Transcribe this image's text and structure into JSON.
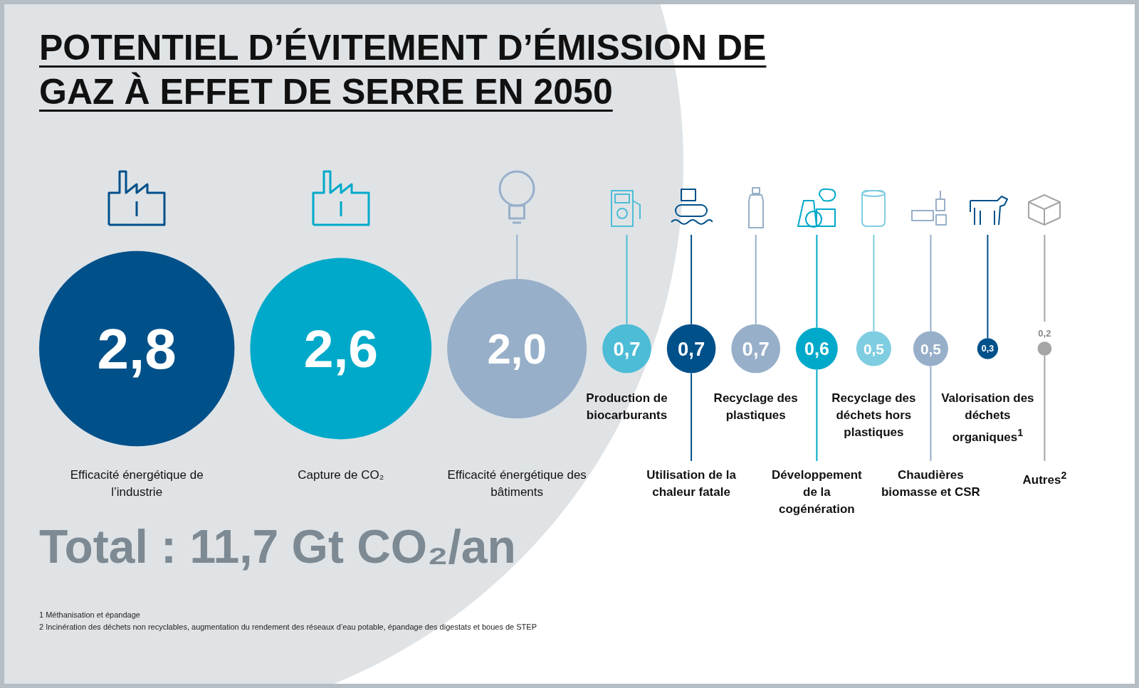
{
  "chart_data": {
    "type": "other",
    "title": "POTENTIEL D’ÉVITEMENT D’ÉMISSION DE GAZ À EFFET DE SERRE EN 2050",
    "categories": [
      "Efficacité énergétique de l’industrie",
      "Capture de CO₂",
      "Efficacité énergétique des bâtiments",
      "Production de biocarburants",
      "Utilisation de la chaleur fatale",
      "Recyclage des plastiques",
      "Développement de la cogénération",
      "Recyclage des déchets hors plastiques",
      "Chaudières biomasse et CSR",
      "Valorisation des déchets organiques$^{1}$",
      "Autres$^{2}$"
    ],
    "values": [
      2.8,
      2.6,
      2.0,
      0.7,
      0.7,
      0.7,
      0.6,
      0.5,
      0.5,
      0.3,
      0.2
    ],
    "value_labels": [
      "2,8",
      "2,6",
      "2,0",
      "0,7",
      "0,7",
      "0,7",
      "0,6",
      "0,5",
      "0,5",
      "0,3",
      "0,2"
    ],
    "colors": [
      "#00508a",
      "#00a9c9",
      "#97afc9",
      "#4dbcd6",
      "#00508a",
      "#97afc9",
      "#00a9c9",
      "#7fcde0",
      "#97afc9",
      "#00508a",
      "#a5a5a5"
    ],
    "annotations": [
      "Total : 11,7 Gt CO₂/an",
      "1 Méthanisation et épandage",
      "2 Incinération des déchets non recyclables, augmentation du rendement des réseaux d’eau potable, épandage des digestats et boues de STEP"
    ]
  }
}
